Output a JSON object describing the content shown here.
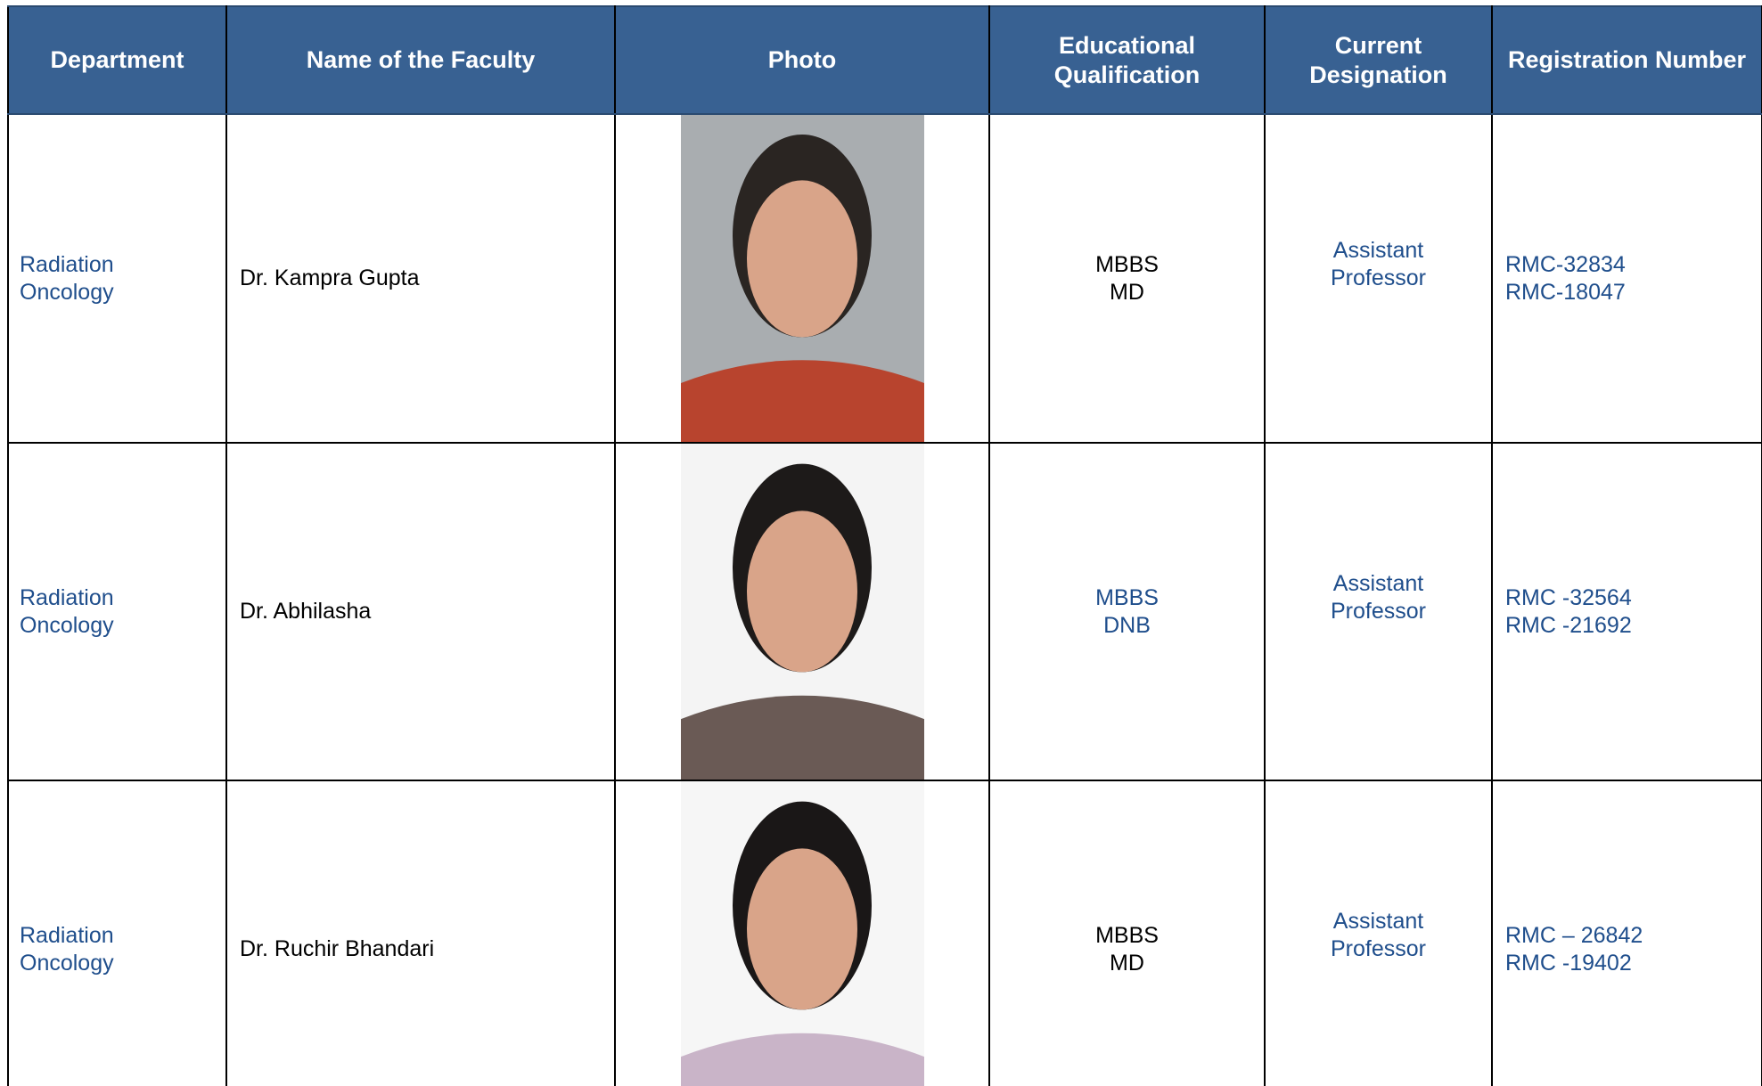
{
  "header": {
    "columns": [
      "Department",
      "Name of the Faculty",
      "Photo",
      "Educational Qualification",
      "Current Designation",
      "Registration Number"
    ]
  },
  "rows": [
    {
      "department": "Radiation Oncology",
      "name": "Dr. Kampra Gupta",
      "qualification": [
        "MBBS",
        "MD"
      ],
      "designation": "Assistant Professor",
      "registration": [
        "RMC-32834",
        "RMC-18047"
      ]
    },
    {
      "department": "Radiation Oncology",
      "name": "Dr. Abhilasha",
      "qualification": [
        "MBBS",
        "DNB"
      ],
      "designation": "Assistant Professor",
      "registration": [
        "RMC -32564",
        "RMC -21692"
      ]
    },
    {
      "department": "Radiation Oncology",
      "name": "Dr. Ruchir Bhandari",
      "qualification": [
        "MBBS",
        "MD"
      ],
      "designation": "Assistant Professor",
      "registration": [
        "RMC – 26842",
        "RMC -19402"
      ]
    }
  ]
}
